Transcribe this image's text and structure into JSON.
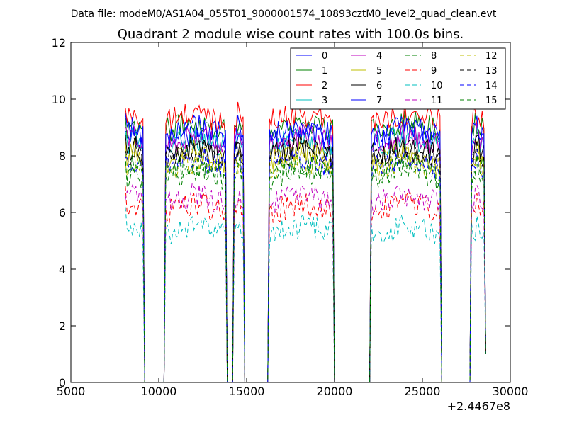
{
  "header": {
    "data_file_line": "Data file: modeM0/AS1A04_055T01_9000001574_10893cztM0_level2_quad_clean.evt"
  },
  "chart_data": {
    "type": "line",
    "title": "Quadrant 2 module wise count rates with 100.0s bins.",
    "xlabel": "",
    "ylabel": "",
    "x_offset_label": "+2.4467e8",
    "xlim": [
      5000,
      30000
    ],
    "ylim": [
      0,
      12
    ],
    "x_ticks": [
      5000,
      10000,
      15000,
      20000,
      25000,
      30000
    ],
    "x_tick_labels": [
      "5000",
      "10000",
      "15000",
      "20000",
      "25000",
      "30000"
    ],
    "y_ticks": [
      0,
      2,
      4,
      6,
      8,
      10,
      12
    ],
    "y_tick_labels": [
      "0",
      "2",
      "4",
      "6",
      "8",
      "10",
      "12"
    ],
    "grid": false,
    "legend_position": "top-right",
    "segments": [
      [
        8100,
        9100
      ],
      [
        10400,
        13800
      ],
      [
        14300,
        14800
      ],
      [
        16300,
        19900
      ],
      [
        22100,
        26000
      ],
      [
        27800,
        28500
      ]
    ],
    "series": [
      {
        "name": "0",
        "color": "#0000ff",
        "style": "solid",
        "level": 8.5
      },
      {
        "name": "1",
        "color": "#008000",
        "style": "solid",
        "level": 8.9
      },
      {
        "name": "2",
        "color": "#ff0000",
        "style": "solid",
        "level": 9.2
      },
      {
        "name": "3",
        "color": "#00bfbf",
        "style": "solid",
        "level": 8.3
      },
      {
        "name": "4",
        "color": "#bf00bf",
        "style": "solid",
        "level": 8.4
      },
      {
        "name": "5",
        "color": "#bfbf00",
        "style": "solid",
        "level": 7.8
      },
      {
        "name": "6",
        "color": "#000000",
        "style": "solid",
        "level": 8.0
      },
      {
        "name": "7",
        "color": "#0000ff",
        "style": "solid",
        "level": 8.7
      },
      {
        "name": "8",
        "color": "#008000",
        "style": "dashed",
        "level": 7.2
      },
      {
        "name": "9",
        "color": "#ff0000",
        "style": "dashed",
        "level": 6.0
      },
      {
        "name": "10",
        "color": "#00bfbf",
        "style": "dashed",
        "level": 5.2
      },
      {
        "name": "11",
        "color": "#bf00bf",
        "style": "dashed",
        "level": 6.3
      },
      {
        "name": "12",
        "color": "#bfbf00",
        "style": "dashed",
        "level": 7.5
      },
      {
        "name": "13",
        "color": "#000000",
        "style": "dashed",
        "level": 7.9
      },
      {
        "name": "14",
        "color": "#0000ff",
        "style": "dashed",
        "level": 7.6
      },
      {
        "name": "15",
        "color": "#008000",
        "style": "dashed",
        "level": 7.4
      }
    ]
  }
}
